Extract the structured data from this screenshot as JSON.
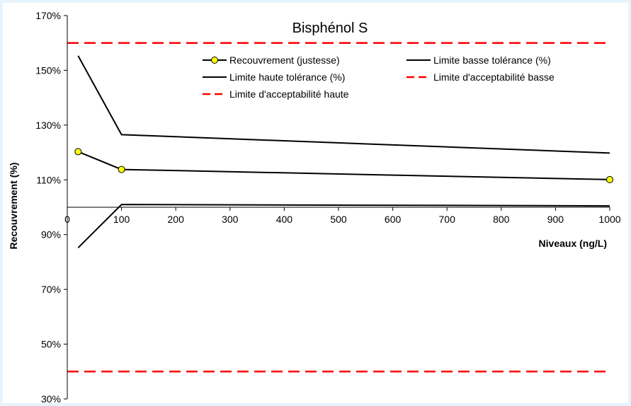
{
  "chart_data": {
    "type": "line",
    "title": "Bisphénol S",
    "xlabel": "Niveaux (ng/L)",
    "ylabel": "Recouvrement (%)",
    "xlim": [
      0,
      1000
    ],
    "ylim": [
      30,
      170
    ],
    "x_ticks": [
      0,
      100,
      200,
      300,
      400,
      500,
      600,
      700,
      800,
      900,
      1000
    ],
    "y_ticks": [
      30,
      50,
      70,
      90,
      110,
      130,
      150,
      170
    ],
    "y_tick_format": "%",
    "x_axis_crosses_at": 100,
    "grid": false,
    "legend_position": "top-right",
    "series": [
      {
        "name": "Recouvrement (justesse)",
        "color": "#000000",
        "marker_color": "#ffff00",
        "style": "solid-with-markers",
        "x": [
          20,
          100,
          1000
        ],
        "y": [
          120.3,
          113.8,
          110.1
        ]
      },
      {
        "name": "Limite basse tolérance (%)",
        "color": "#000000",
        "style": "solid",
        "x": [
          20,
          100,
          1000
        ],
        "y": [
          85.2,
          101.0,
          100.5
        ]
      },
      {
        "name": "Limite haute tolérance (%)",
        "color": "#000000",
        "style": "solid",
        "x": [
          20,
          100,
          1000
        ],
        "y": [
          155.3,
          126.5,
          119.8
        ]
      },
      {
        "name": "Limite d'acceptabilité basse",
        "color": "#ff0000",
        "style": "dashed",
        "x": [
          0,
          1000
        ],
        "y": [
          40,
          40
        ]
      },
      {
        "name": "Limite d'acceptabilité haute",
        "color": "#ff0000",
        "style": "dashed",
        "x": [
          0,
          1000
        ],
        "y": [
          160,
          160
        ]
      }
    ]
  }
}
